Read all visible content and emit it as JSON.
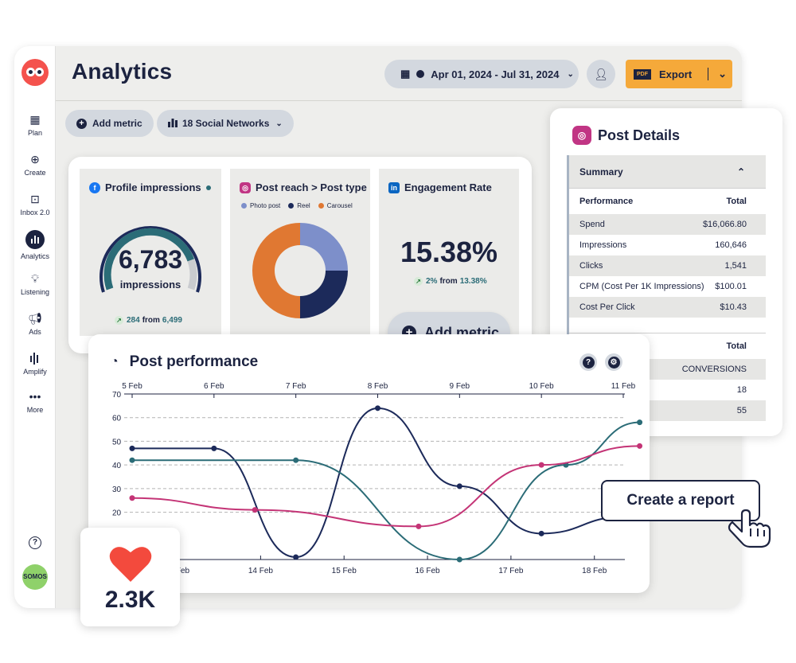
{
  "app": {
    "title": "Analytics"
  },
  "sidebar": {
    "items": [
      {
        "label": "Plan",
        "icon": "calendar-icon"
      },
      {
        "label": "Create",
        "icon": "plus-circle-icon"
      },
      {
        "label": "Inbox 2.0",
        "icon": "inbox-icon"
      },
      {
        "label": "Analytics",
        "icon": "bar-chart-icon"
      },
      {
        "label": "Listening",
        "icon": "bulb-icon"
      },
      {
        "label": "Ads",
        "icon": "megaphone-icon"
      },
      {
        "label": "Amplify",
        "icon": "amplify-icon"
      },
      {
        "label": "More",
        "icon": "ellipsis-icon"
      }
    ],
    "avatar_text": "SOMOS"
  },
  "header": {
    "date_range": "Apr 01, 2024 - Jul 31, 2024",
    "export_label": "Export",
    "pdf_badge": "PDF"
  },
  "toolbar": {
    "add_metric": "Add metric",
    "networks": "18 Social Networks"
  },
  "cards": {
    "impressions": {
      "title": "Profile impressions",
      "value": "6,783",
      "unit": "impressions",
      "change": "284",
      "from_label": "from",
      "previous": "6,499",
      "gauge_fraction": 0.82
    },
    "reach": {
      "title": "Post reach > Post type",
      "legend": [
        "Photo post",
        "Reel",
        "Carousel"
      ],
      "colors": [
        "#7d8fca",
        "#1c2a5a",
        "#e07832"
      ],
      "shares": [
        25,
        25,
        50
      ]
    },
    "engagement": {
      "title": "Engagement Rate",
      "value": "15.38%",
      "change": "2%",
      "from_label": "from",
      "previous": "13.38%"
    }
  },
  "floating_add_metric": "Add metric",
  "post_details": {
    "title": "Post Details",
    "summary_label": "Summary",
    "header_left": "Performance",
    "header_right": "Total",
    "rows": [
      {
        "label": "Spend",
        "value": "$16,066.80"
      },
      {
        "label": "Impressions",
        "value": "160,646"
      },
      {
        "label": "Clicks",
        "value": "1,541"
      },
      {
        "label": "CPM (Cost Per 1K Impressions)",
        "value": "$100.01"
      },
      {
        "label": "Cost Per Click",
        "value": "$10.43"
      }
    ],
    "second_header": "Total",
    "conversions_label": "CONVERSIONS",
    "conversions": [
      "18",
      "55"
    ]
  },
  "performance": {
    "title": "Post performance"
  },
  "create_report": "Create a report",
  "likes": {
    "value": "2.3K",
    "icon": "heart-icon"
  },
  "chart_data": {
    "type": "line",
    "title": "Post performance",
    "x_top": [
      "5 Feb",
      "6 Feb",
      "7 Feb",
      "8 Feb",
      "9 Feb",
      "10 Feb",
      "11 Feb"
    ],
    "x_bottom": [
      "13 Feb",
      "14 Feb",
      "15 Feb",
      "16 Feb",
      "17 Feb",
      "18 Feb"
    ],
    "y_ticks": [
      70,
      60,
      50,
      40,
      30,
      20
    ],
    "ylim": [
      0,
      70
    ],
    "grid": true,
    "series": [
      {
        "color": "#1c2a5a",
        "points": [
          [
            0,
            47
          ],
          [
            1,
            47
          ],
          [
            2,
            1
          ],
          [
            3,
            64
          ],
          [
            4,
            31
          ],
          [
            5,
            11
          ],
          [
            6,
            18
          ]
        ]
      },
      {
        "color": "#2b6c77",
        "points": [
          [
            0,
            42
          ],
          [
            2,
            42
          ],
          [
            4,
            0
          ],
          [
            5.3,
            40
          ],
          [
            6.2,
            58
          ]
        ]
      },
      {
        "color": "#c43476",
        "points": [
          [
            0,
            26
          ],
          [
            1.5,
            21
          ],
          [
            3.5,
            14
          ],
          [
            5,
            40
          ],
          [
            6.2,
            48
          ]
        ]
      }
    ]
  }
}
